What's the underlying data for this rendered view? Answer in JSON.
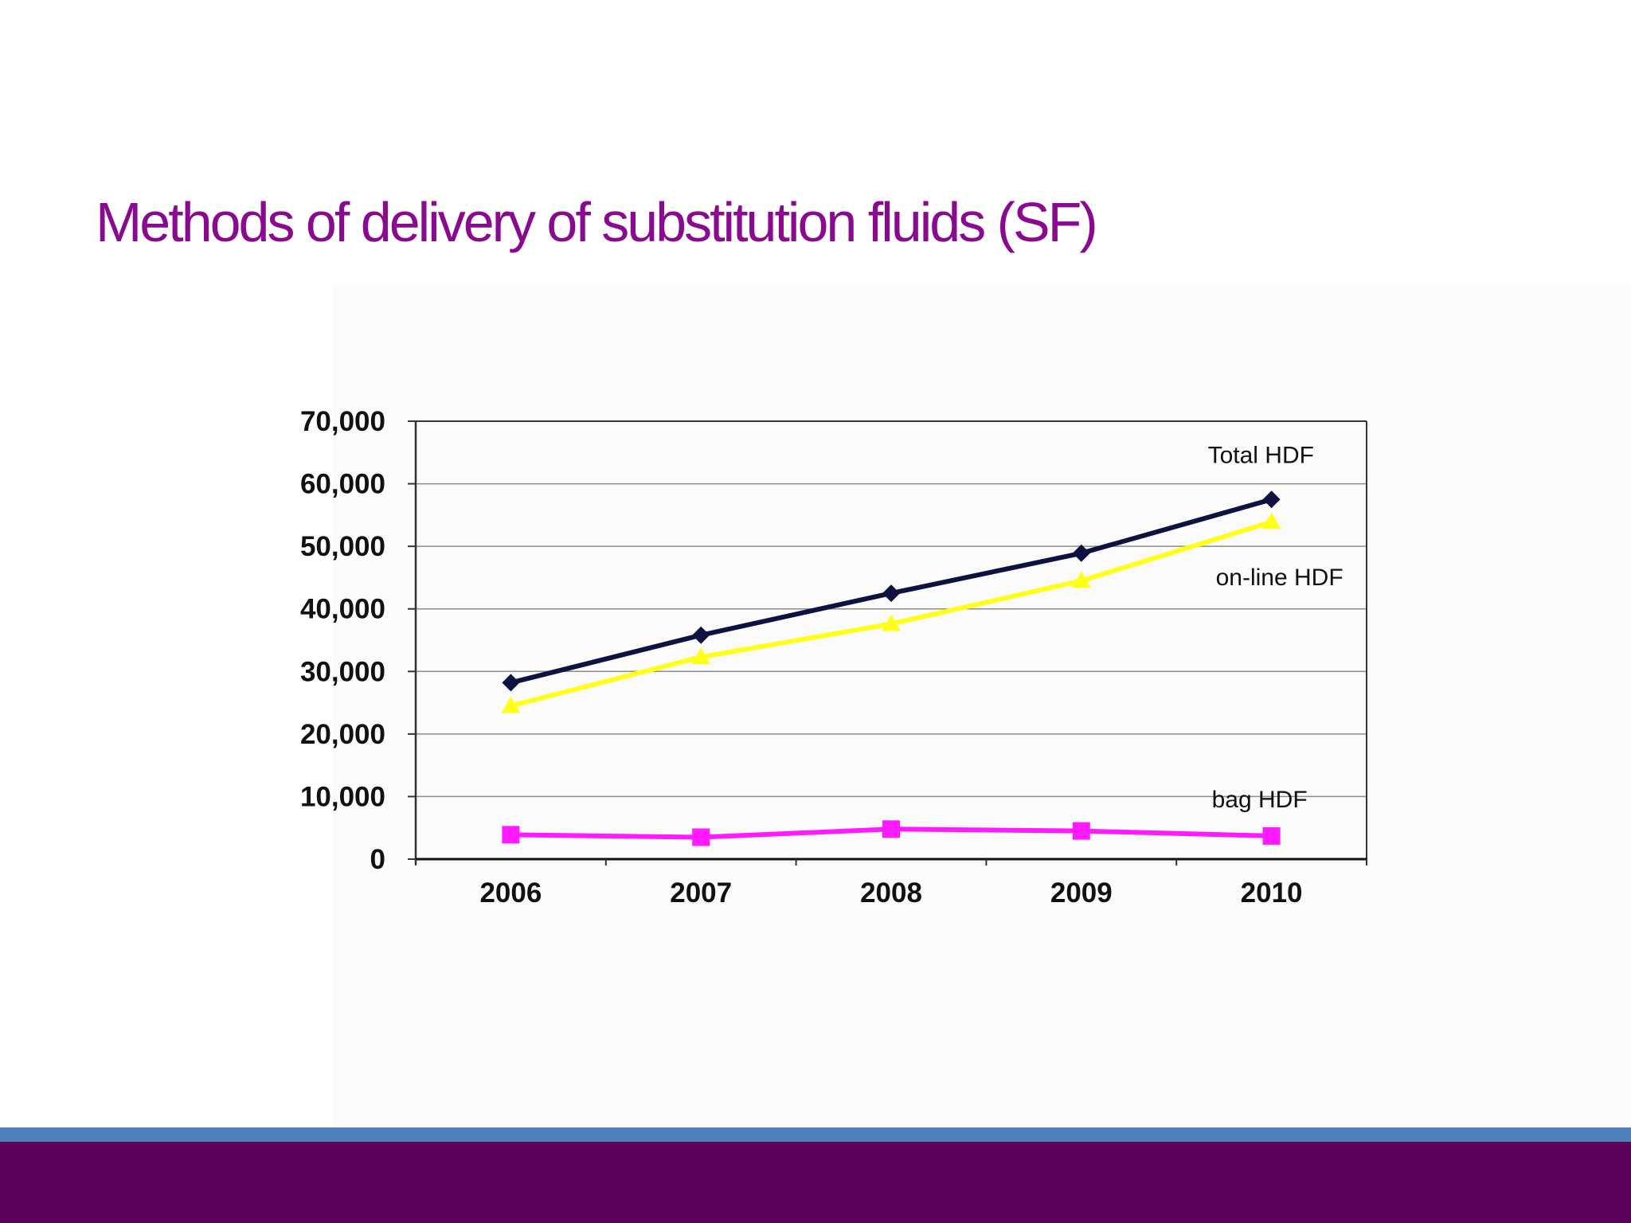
{
  "slide": {
    "title": "Methods of delivery of substitution fluids (SF)"
  },
  "colors": {
    "title": "#8a0a8f",
    "stripe": "#4f81bd",
    "footer": "#5c005c",
    "grid": "#8c8c8c",
    "axis": "#333333"
  },
  "chart_data": {
    "type": "line",
    "categories": [
      "2006",
      "2007",
      "2008",
      "2009",
      "2010"
    ],
    "ylim": [
      0,
      70000
    ],
    "yticks": [
      0,
      10000,
      20000,
      30000,
      40000,
      50000,
      60000,
      70000
    ],
    "ytick_labels": [
      "0",
      "10,000",
      "20,000",
      "30,000",
      "40,000",
      "50,000",
      "60,000",
      "70,000"
    ],
    "grid": true,
    "title": "",
    "xlabel": "",
    "ylabel": "",
    "series": [
      {
        "name": "Total HDF",
        "values": [
          28200,
          35800,
          42500,
          48900,
          57500
        ],
        "color": "#0f1140",
        "marker": "diamond"
      },
      {
        "name": "on-line HDF",
        "values": [
          24500,
          32300,
          37600,
          44500,
          53900
        ],
        "color": "#ffff1a",
        "marker": "triangle"
      },
      {
        "name": "bag HDF",
        "values": [
          3900,
          3500,
          4800,
          4500,
          3700
        ],
        "color": "#ff1aff",
        "marker": "square"
      }
    ]
  }
}
